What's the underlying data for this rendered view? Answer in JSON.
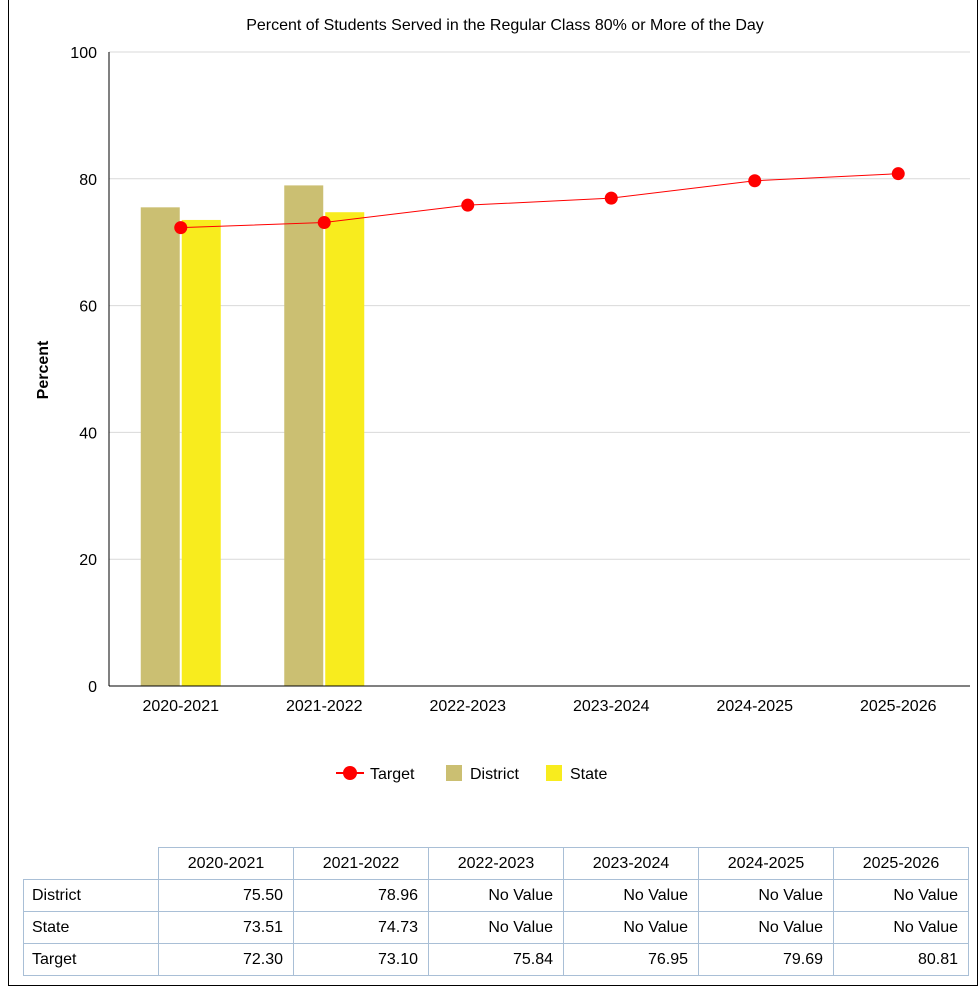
{
  "chart_data": {
    "type": "bar",
    "title": "Percent of Students Served in the Regular Class 80% or More of the Day",
    "xlabel": "",
    "ylabel": "Percent",
    "ylim": [
      0,
      100
    ],
    "yticks": [
      0,
      20,
      40,
      60,
      80,
      100
    ],
    "categories": [
      "2020-2021",
      "2021-2022",
      "2022-2023",
      "2023-2024",
      "2024-2025",
      "2025-2026"
    ],
    "series": [
      {
        "name": "District",
        "type": "bar",
        "color": "#cbbf72",
        "values": [
          75.5,
          78.96,
          null,
          null,
          null,
          null
        ]
      },
      {
        "name": "State",
        "type": "bar",
        "color": "#f8ec1e",
        "values": [
          73.51,
          74.73,
          null,
          null,
          null,
          null
        ]
      },
      {
        "name": "Target",
        "type": "line",
        "color": "#ff0000",
        "values": [
          72.3,
          73.1,
          75.84,
          76.95,
          79.69,
          80.81
        ]
      }
    ],
    "legend": {
      "placement": "bottom",
      "order": [
        "Target",
        "District",
        "State"
      ]
    },
    "grid": true
  },
  "table": {
    "headers": [
      "2020-2021",
      "2021-2022",
      "2022-2023",
      "2023-2024",
      "2024-2025",
      "2025-2026"
    ],
    "rows": [
      {
        "label": "District",
        "cells": [
          "75.50",
          "78.96",
          "No Value",
          "No Value",
          "No Value",
          "No Value"
        ]
      },
      {
        "label": "State",
        "cells": [
          "73.51",
          "74.73",
          "No Value",
          "No Value",
          "No Value",
          "No Value"
        ]
      },
      {
        "label": "Target",
        "cells": [
          "72.30",
          "73.10",
          "75.84",
          "76.95",
          "79.69",
          "80.81"
        ]
      }
    ]
  }
}
